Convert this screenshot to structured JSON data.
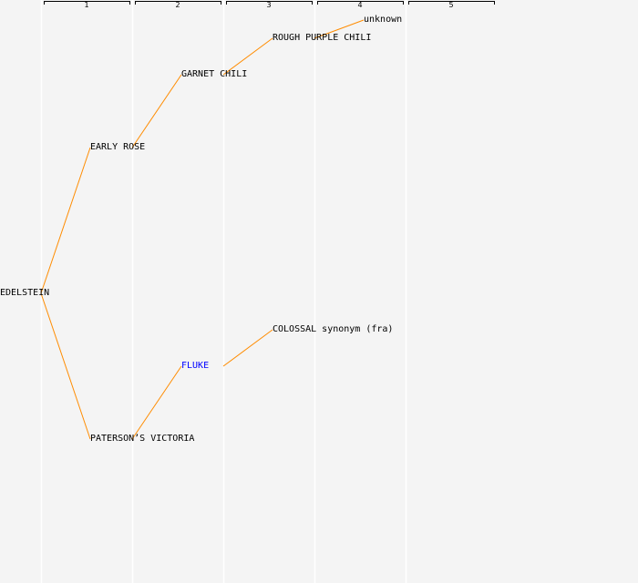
{
  "columns": [
    "1",
    "2",
    "3",
    "4",
    "5"
  ],
  "colors": {
    "background": "#f4f4f4",
    "gridline": "#ffffff",
    "edge": "#ff8c00",
    "text": "#000000",
    "highlight": "#0000ff"
  },
  "nodes": [
    {
      "id": "edelstein",
      "label": "EDELSTEIN",
      "generation": 0,
      "highlight": false
    },
    {
      "id": "early-rose",
      "label": "EARLY ROSE",
      "generation": 1,
      "highlight": false
    },
    {
      "id": "garnet-chili",
      "label": "GARNET CHILI",
      "generation": 2,
      "highlight": false
    },
    {
      "id": "rough-purple-chili",
      "label": "ROUGH PURPLE CHILI",
      "generation": 3,
      "highlight": false
    },
    {
      "id": "unknown",
      "label": "unknown",
      "generation": 4,
      "highlight": false
    },
    {
      "id": "patersons-victoria",
      "label": "PATERSON’S VICTORIA",
      "generation": 1,
      "highlight": false
    },
    {
      "id": "fluke",
      "label": "FLUKE",
      "generation": 2,
      "highlight": true
    },
    {
      "id": "colossal",
      "label": "COLOSSAL synonym (fra)",
      "generation": 3,
      "highlight": false
    }
  ],
  "edges": [
    [
      "edelstein",
      "early-rose"
    ],
    [
      "early-rose",
      "garnet-chili"
    ],
    [
      "garnet-chili",
      "rough-purple-chili"
    ],
    [
      "rough-purple-chili",
      "unknown"
    ],
    [
      "edelstein",
      "patersons-victoria"
    ],
    [
      "patersons-victoria",
      "fluke"
    ],
    [
      "fluke",
      "colossal"
    ]
  ]
}
